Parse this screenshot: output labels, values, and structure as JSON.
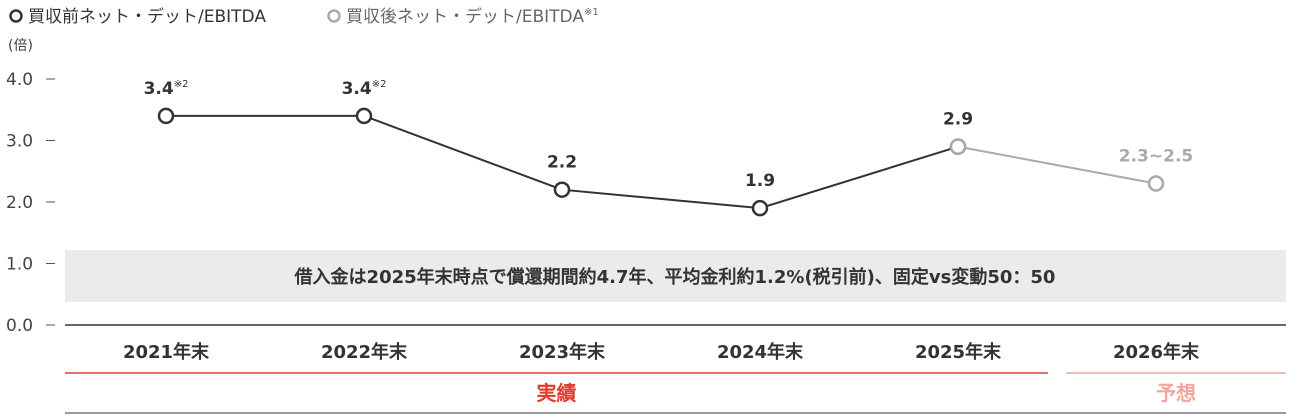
{
  "legend": [
    {
      "label": "買収前ネット・デット/EBITDA",
      "sup": "",
      "color": "#333333",
      "icon": "circle-outline-icon"
    },
    {
      "label": "買収後ネット・デット/EBITDA",
      "sup": "※1",
      "color": "#aaaaaa",
      "icon": "circle-outline-icon"
    }
  ],
  "annotation": "借入金は2025年末時点で償還期間約4.7年、平均金利約1.2%(税引前)、固定vs変動50：50",
  "groups": [
    {
      "label": "実績",
      "color": "#e03b2e"
    },
    {
      "label": "予想",
      "color": "#f2a59e"
    }
  ],
  "chart_data": {
    "type": "line",
    "ylabel": "(倍)",
    "ylim": [
      0,
      4.0
    ],
    "yticks": [
      "4.0",
      "3.0",
      "2.0",
      "1.0",
      "0.0"
    ],
    "categories": [
      "2021年末",
      "2022年末",
      "2023年末",
      "2024年末",
      "2025年末",
      "2026年末"
    ],
    "series": [
      {
        "name": "買収前ネット・デット/EBITDA",
        "color": "#333333",
        "values": [
          3.4,
          3.4,
          2.2,
          1.9,
          2.9,
          null
        ],
        "labels": [
          "3.4",
          "3.4",
          "2.2",
          "1.9",
          "2.9",
          ""
        ],
        "label_sups": [
          "※2",
          "※2",
          "",
          "",
          "",
          ""
        ]
      },
      {
        "name": "買収後ネット・デット/EBITDA",
        "color": "#aaaaaa",
        "values": [
          null,
          null,
          null,
          null,
          2.9,
          2.3
        ],
        "labels": [
          "",
          "",
          "",
          "",
          "",
          "2.3~2.5"
        ],
        "label_sups": [
          "",
          "",
          "",
          "",
          "",
          ""
        ]
      }
    ]
  }
}
